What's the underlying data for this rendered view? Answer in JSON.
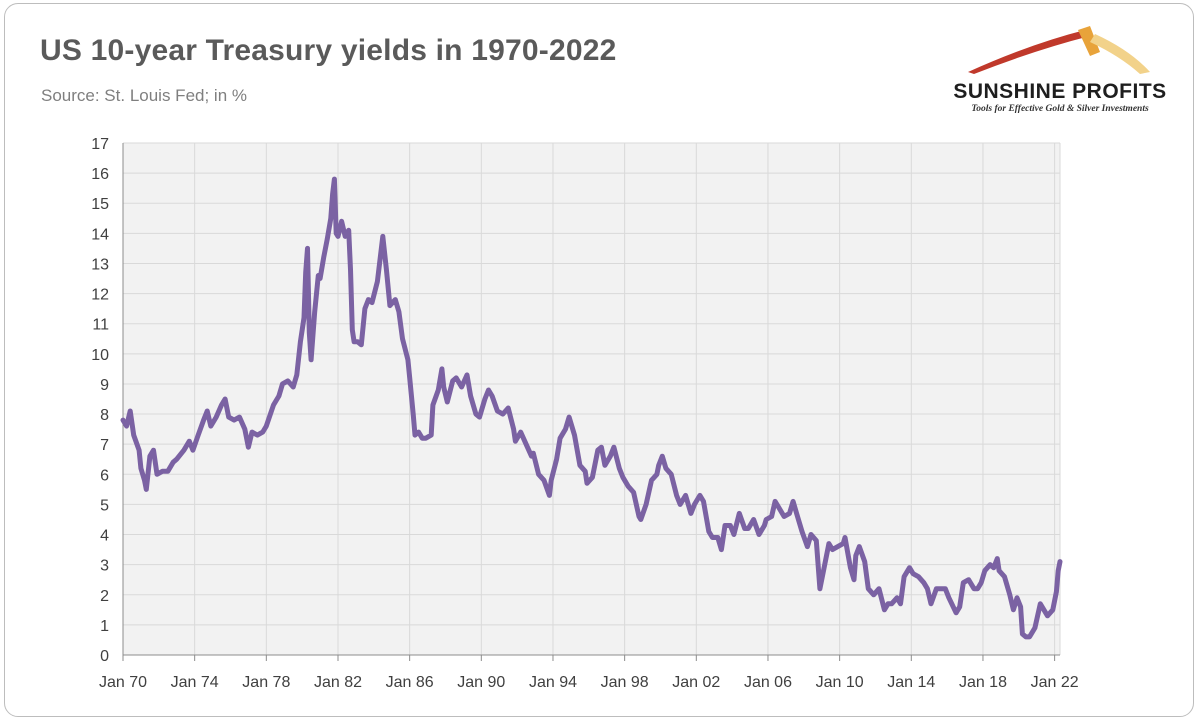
{
  "header": {
    "title": "US 10-year Treasury yields in 1970-2022",
    "subtitle": "Source: St. Louis Fed; in %"
  },
  "logo": {
    "name": "SUNSHINE PROFITS",
    "tagline": "Tools for Effective Gold & Silver Investments",
    "colors": [
      "#c0392b",
      "#e8a33a",
      "#f2d28a"
    ]
  },
  "colors": {
    "line": "#7b62a3",
    "grid": "#d9d9d9",
    "plot_bg": "#f2f2f2",
    "axis": "#8c8c8c"
  },
  "chart_data": {
    "type": "line",
    "title": "US 10-year Treasury yields in 1970-2022",
    "subtitle": "Source: St. Louis Fed; in %",
    "xlabel": "",
    "ylabel": "",
    "xlim": [
      1970.0,
      2022.3
    ],
    "ylim": [
      0,
      17
    ],
    "grid": true,
    "y_ticks": [
      0,
      1,
      2,
      3,
      4,
      5,
      6,
      7,
      8,
      9,
      10,
      11,
      12,
      13,
      14,
      15,
      16,
      17
    ],
    "x_ticks": [
      {
        "label": "Jan 70",
        "x": 1970
      },
      {
        "label": "Jan 74",
        "x": 1974
      },
      {
        "label": "Jan 78",
        "x": 1978
      },
      {
        "label": "Jan 82",
        "x": 1982
      },
      {
        "label": "Jan 86",
        "x": 1986
      },
      {
        "label": "Jan 90",
        "x": 1990
      },
      {
        "label": "Jan 94",
        "x": 1994
      },
      {
        "label": "Jan 98",
        "x": 1998
      },
      {
        "label": "Jan 02",
        "x": 2002
      },
      {
        "label": "Jan 06",
        "x": 2006
      },
      {
        "label": "Jan 10",
        "x": 2010
      },
      {
        "label": "Jan 14",
        "x": 2014
      },
      {
        "label": "Jan 18",
        "x": 2018
      },
      {
        "label": "Jan 22",
        "x": 2022
      }
    ],
    "series": [
      {
        "name": "US 10-year Treasury yield",
        "points": [
          [
            1970.0,
            7.8
          ],
          [
            1970.2,
            7.6
          ],
          [
            1970.4,
            8.1
          ],
          [
            1970.6,
            7.3
          ],
          [
            1970.9,
            6.8
          ],
          [
            1971.0,
            6.2
          ],
          [
            1971.2,
            5.8
          ],
          [
            1971.3,
            5.5
          ],
          [
            1971.5,
            6.6
          ],
          [
            1971.7,
            6.8
          ],
          [
            1971.9,
            6.0
          ],
          [
            1972.2,
            6.1
          ],
          [
            1972.5,
            6.1
          ],
          [
            1972.8,
            6.4
          ],
          [
            1973.0,
            6.5
          ],
          [
            1973.4,
            6.8
          ],
          [
            1973.7,
            7.1
          ],
          [
            1973.9,
            6.8
          ],
          [
            1974.2,
            7.3
          ],
          [
            1974.5,
            7.8
          ],
          [
            1974.7,
            8.1
          ],
          [
            1974.9,
            7.6
          ],
          [
            1975.2,
            7.9
          ],
          [
            1975.5,
            8.3
          ],
          [
            1975.7,
            8.5
          ],
          [
            1975.9,
            7.9
          ],
          [
            1976.2,
            7.8
          ],
          [
            1976.5,
            7.9
          ],
          [
            1976.8,
            7.5
          ],
          [
            1977.0,
            6.9
          ],
          [
            1977.2,
            7.4
          ],
          [
            1977.5,
            7.3
          ],
          [
            1977.8,
            7.4
          ],
          [
            1978.0,
            7.6
          ],
          [
            1978.4,
            8.3
          ],
          [
            1978.7,
            8.6
          ],
          [
            1978.9,
            9.0
          ],
          [
            1979.2,
            9.1
          ],
          [
            1979.5,
            8.9
          ],
          [
            1979.7,
            9.3
          ],
          [
            1979.9,
            10.4
          ],
          [
            1980.1,
            11.2
          ],
          [
            1980.2,
            12.7
          ],
          [
            1980.3,
            13.5
          ],
          [
            1980.4,
            10.7
          ],
          [
            1980.5,
            9.8
          ],
          [
            1980.7,
            11.4
          ],
          [
            1980.9,
            12.6
          ],
          [
            1981.0,
            12.5
          ],
          [
            1981.2,
            13.2
          ],
          [
            1981.4,
            13.8
          ],
          [
            1981.6,
            14.5
          ],
          [
            1981.7,
            15.3
          ],
          [
            1981.8,
            15.8
          ],
          [
            1981.9,
            14.0
          ],
          [
            1982.0,
            13.9
          ],
          [
            1982.2,
            14.4
          ],
          [
            1982.4,
            13.9
          ],
          [
            1982.6,
            14.1
          ],
          [
            1982.7,
            12.8
          ],
          [
            1982.8,
            10.8
          ],
          [
            1982.9,
            10.4
          ],
          [
            1983.1,
            10.4
          ],
          [
            1983.3,
            10.3
          ],
          [
            1983.5,
            11.5
          ],
          [
            1983.7,
            11.8
          ],
          [
            1983.9,
            11.7
          ],
          [
            1984.2,
            12.4
          ],
          [
            1984.4,
            13.4
          ],
          [
            1984.5,
            13.9
          ],
          [
            1984.7,
            12.8
          ],
          [
            1984.9,
            11.6
          ],
          [
            1985.2,
            11.8
          ],
          [
            1985.4,
            11.4
          ],
          [
            1985.6,
            10.5
          ],
          [
            1985.9,
            9.8
          ],
          [
            1986.0,
            9.2
          ],
          [
            1986.2,
            8.0
          ],
          [
            1986.3,
            7.3
          ],
          [
            1986.5,
            7.4
          ],
          [
            1986.7,
            7.2
          ],
          [
            1986.9,
            7.2
          ],
          [
            1987.2,
            7.3
          ],
          [
            1987.3,
            8.3
          ],
          [
            1987.6,
            8.8
          ],
          [
            1987.8,
            9.5
          ],
          [
            1987.9,
            8.9
          ],
          [
            1988.1,
            8.4
          ],
          [
            1988.4,
            9.1
          ],
          [
            1988.6,
            9.2
          ],
          [
            1988.9,
            8.9
          ],
          [
            1989.2,
            9.3
          ],
          [
            1989.4,
            8.6
          ],
          [
            1989.7,
            8.0
          ],
          [
            1989.9,
            7.9
          ],
          [
            1990.2,
            8.5
          ],
          [
            1990.4,
            8.8
          ],
          [
            1990.6,
            8.6
          ],
          [
            1990.9,
            8.1
          ],
          [
            1991.2,
            8.0
          ],
          [
            1991.5,
            8.2
          ],
          [
            1991.8,
            7.5
          ],
          [
            1991.9,
            7.1
          ],
          [
            1992.2,
            7.4
          ],
          [
            1992.5,
            7.0
          ],
          [
            1992.8,
            6.6
          ],
          [
            1992.9,
            6.7
          ],
          [
            1993.2,
            6.0
          ],
          [
            1993.5,
            5.8
          ],
          [
            1993.8,
            5.3
          ],
          [
            1993.9,
            5.8
          ],
          [
            1994.2,
            6.5
          ],
          [
            1994.4,
            7.2
          ],
          [
            1994.7,
            7.5
          ],
          [
            1994.9,
            7.9
          ],
          [
            1995.2,
            7.3
          ],
          [
            1995.5,
            6.3
          ],
          [
            1995.8,
            6.1
          ],
          [
            1995.9,
            5.7
          ],
          [
            1996.2,
            5.9
          ],
          [
            1996.5,
            6.8
          ],
          [
            1996.7,
            6.9
          ],
          [
            1996.9,
            6.3
          ],
          [
            1997.2,
            6.6
          ],
          [
            1997.4,
            6.9
          ],
          [
            1997.7,
            6.2
          ],
          [
            1997.9,
            5.9
          ],
          [
            1998.2,
            5.6
          ],
          [
            1998.5,
            5.4
          ],
          [
            1998.8,
            4.6
          ],
          [
            1998.9,
            4.5
          ],
          [
            1999.2,
            5.0
          ],
          [
            1999.5,
            5.8
          ],
          [
            1999.8,
            6.0
          ],
          [
            1999.9,
            6.3
          ],
          [
            2000.1,
            6.6
          ],
          [
            2000.3,
            6.2
          ],
          [
            2000.6,
            6.0
          ],
          [
            2000.9,
            5.3
          ],
          [
            2001.1,
            5.0
          ],
          [
            2001.4,
            5.3
          ],
          [
            2001.7,
            4.7
          ],
          [
            2001.9,
            5.0
          ],
          [
            2002.2,
            5.3
          ],
          [
            2002.4,
            5.1
          ],
          [
            2002.7,
            4.1
          ],
          [
            2002.9,
            3.9
          ],
          [
            2003.2,
            3.9
          ],
          [
            2003.4,
            3.5
          ],
          [
            2003.6,
            4.3
          ],
          [
            2003.9,
            4.3
          ],
          [
            2004.1,
            4.0
          ],
          [
            2004.4,
            4.7
          ],
          [
            2004.7,
            4.2
          ],
          [
            2004.9,
            4.2
          ],
          [
            2005.2,
            4.5
          ],
          [
            2005.5,
            4.0
          ],
          [
            2005.8,
            4.3
          ],
          [
            2005.9,
            4.5
          ],
          [
            2006.2,
            4.6
          ],
          [
            2006.4,
            5.1
          ],
          [
            2006.6,
            4.9
          ],
          [
            2006.9,
            4.6
          ],
          [
            2007.2,
            4.7
          ],
          [
            2007.4,
            5.1
          ],
          [
            2007.6,
            4.7
          ],
          [
            2007.9,
            4.1
          ],
          [
            2008.2,
            3.6
          ],
          [
            2008.4,
            4.0
          ],
          [
            2008.7,
            3.8
          ],
          [
            2008.9,
            2.2
          ],
          [
            2009.1,
            2.8
          ],
          [
            2009.4,
            3.7
          ],
          [
            2009.6,
            3.5
          ],
          [
            2009.9,
            3.6
          ],
          [
            2010.2,
            3.7
          ],
          [
            2010.3,
            3.9
          ],
          [
            2010.6,
            2.9
          ],
          [
            2010.8,
            2.5
          ],
          [
            2010.9,
            3.3
          ],
          [
            2011.1,
            3.6
          ],
          [
            2011.4,
            3.1
          ],
          [
            2011.6,
            2.2
          ],
          [
            2011.9,
            2.0
          ],
          [
            2012.2,
            2.2
          ],
          [
            2012.5,
            1.5
          ],
          [
            2012.7,
            1.7
          ],
          [
            2012.9,
            1.7
          ],
          [
            2013.2,
            1.9
          ],
          [
            2013.4,
            1.7
          ],
          [
            2013.6,
            2.6
          ],
          [
            2013.9,
            2.9
          ],
          [
            2014.1,
            2.7
          ],
          [
            2014.4,
            2.6
          ],
          [
            2014.7,
            2.4
          ],
          [
            2014.9,
            2.2
          ],
          [
            2015.1,
            1.7
          ],
          [
            2015.4,
            2.2
          ],
          [
            2015.6,
            2.2
          ],
          [
            2015.9,
            2.2
          ],
          [
            2016.1,
            1.9
          ],
          [
            2016.5,
            1.4
          ],
          [
            2016.7,
            1.6
          ],
          [
            2016.9,
            2.4
          ],
          [
            2017.2,
            2.5
          ],
          [
            2017.5,
            2.2
          ],
          [
            2017.7,
            2.2
          ],
          [
            2017.9,
            2.4
          ],
          [
            2018.1,
            2.8
          ],
          [
            2018.4,
            3.0
          ],
          [
            2018.6,
            2.9
          ],
          [
            2018.8,
            3.2
          ],
          [
            2018.9,
            2.8
          ],
          [
            2019.2,
            2.6
          ],
          [
            2019.5,
            2.0
          ],
          [
            2019.7,
            1.5
          ],
          [
            2019.9,
            1.9
          ],
          [
            2020.1,
            1.6
          ],
          [
            2020.2,
            0.7
          ],
          [
            2020.4,
            0.6
          ],
          [
            2020.6,
            0.6
          ],
          [
            2020.9,
            0.9
          ],
          [
            2021.2,
            1.7
          ],
          [
            2021.4,
            1.5
          ],
          [
            2021.6,
            1.3
          ],
          [
            2021.9,
            1.5
          ],
          [
            2022.0,
            1.8
          ],
          [
            2022.1,
            2.1
          ],
          [
            2022.2,
            2.8
          ],
          [
            2022.3,
            3.1
          ]
        ]
      }
    ]
  }
}
